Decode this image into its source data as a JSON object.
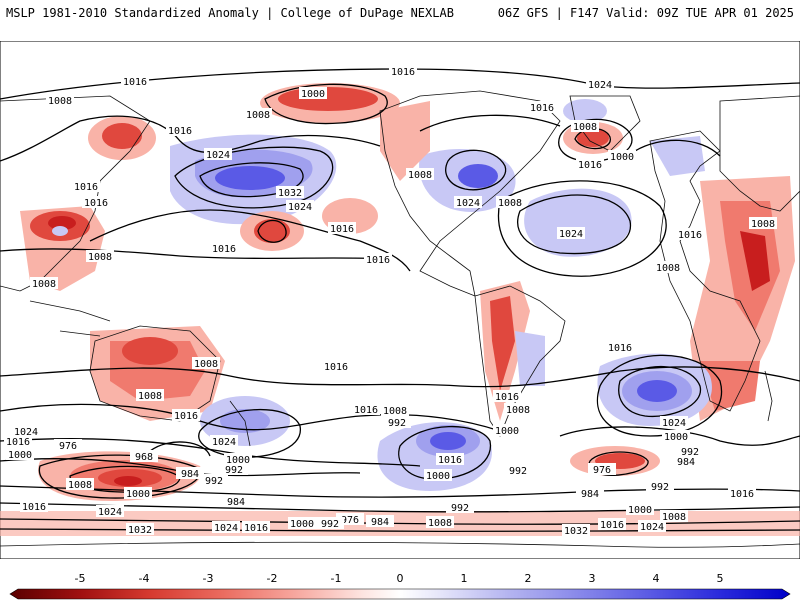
{
  "header": {
    "title_left": "MSLP 1981-2010 Standardized Anomaly | College of DuPage NEXLAB",
    "title_right": "06Z GFS | F147 Valid: 09Z TUE APR 01 2025"
  },
  "colorbar": {
    "ticks": [
      "-5",
      "-4",
      "-3",
      "-2",
      "-1",
      "0",
      "1",
      "2",
      "3",
      "4",
      "5"
    ],
    "colors": [
      "#7a0000",
      "#c81e1e",
      "#e0483e",
      "#f07a6e",
      "#f9b3a8",
      "#ffffff",
      "#c8c8f5",
      "#a0a0ee",
      "#7878e8",
      "#4a4ae0",
      "#1010d8"
    ]
  },
  "isobar_labels": [
    "1016",
    "1024",
    "1000",
    "1008",
    "1032",
    "992",
    "976",
    "984",
    "968"
  ],
  "map": {
    "colors": {
      "ocean": "#ffffff",
      "coastline": "#111111",
      "isobar": "#000000",
      "neg_light": "#f9b3a8",
      "neg_mid": "#f07a6e",
      "neg_strong": "#e0483e",
      "neg_extreme": "#c81e1e",
      "pos_light": "#c8c8f5",
      "pos_mid": "#a0a0ee",
      "pos_strong": "#5a5ae6"
    }
  }
}
